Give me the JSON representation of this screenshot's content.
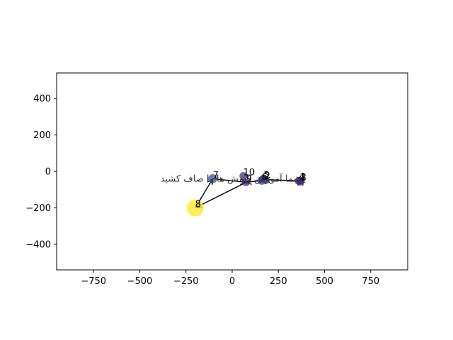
{
  "chart_data": {
    "type": "scatter",
    "title": "",
    "xlabel": "",
    "ylabel": "",
    "xlim": [
      -950,
      950
    ],
    "ylim": [
      -540,
      540
    ],
    "x_ticks": [
      -750,
      -500,
      -250,
      0,
      250,
      500,
      750
    ],
    "y_ticks": [
      -400,
      -200,
      0,
      200,
      400
    ],
    "x_tick_labels": [
      "−750",
      "−500",
      "−250",
      "0",
      "250",
      "500",
      "750"
    ],
    "y_tick_labels": [
      "−400",
      "−200",
      "0",
      "200",
      "400"
    ],
    "grid": false,
    "colormap": [
      "#440154",
      "#482878",
      "#3e4989",
      "#31688e",
      "#26828e",
      "#1f9e89",
      "#35b779",
      "#6ece58",
      "#b5de2b",
      "#fde725"
    ],
    "points": [
      {
        "label": "1",
        "x": 370,
        "y": -50,
        "size": 0.15,
        "color": "#482878"
      },
      {
        "label": "2",
        "x": 175,
        "y": -45,
        "size": 0.12,
        "color": "#46327e"
      },
      {
        "label": "3",
        "x": 370,
        "y": -55,
        "size": 0.18,
        "color": "#443983"
      },
      {
        "label": "4",
        "x": 360,
        "y": -52,
        "size": 0.15,
        "color": "#482878"
      },
      {
        "label": "5",
        "x": 170,
        "y": -40,
        "size": 0.15,
        "color": "#482878"
      },
      {
        "label": "6",
        "x": 160,
        "y": -50,
        "size": 0.2,
        "color": "#3e4989"
      },
      {
        "label": "7",
        "x": -105,
        "y": -40,
        "size": 0.25,
        "color": "#3b528b"
      },
      {
        "label": "8",
        "x": -200,
        "y": -200,
        "size": 1.0,
        "color": "#fde725"
      },
      {
        "label": "9",
        "x": 75,
        "y": -60,
        "size": 0.12,
        "color": "#482878"
      },
      {
        "label": "10",
        "x": 60,
        "y": -25,
        "size": 0.12,
        "color": "#46327e"
      }
    ],
    "path_order": [
      "3",
      "1",
      "4",
      "2",
      "5",
      "6",
      "9",
      "8",
      "7",
      "9",
      "2",
      "6"
    ],
    "annotation": "شما آموزش کشش ها را صاف کشید."
  }
}
